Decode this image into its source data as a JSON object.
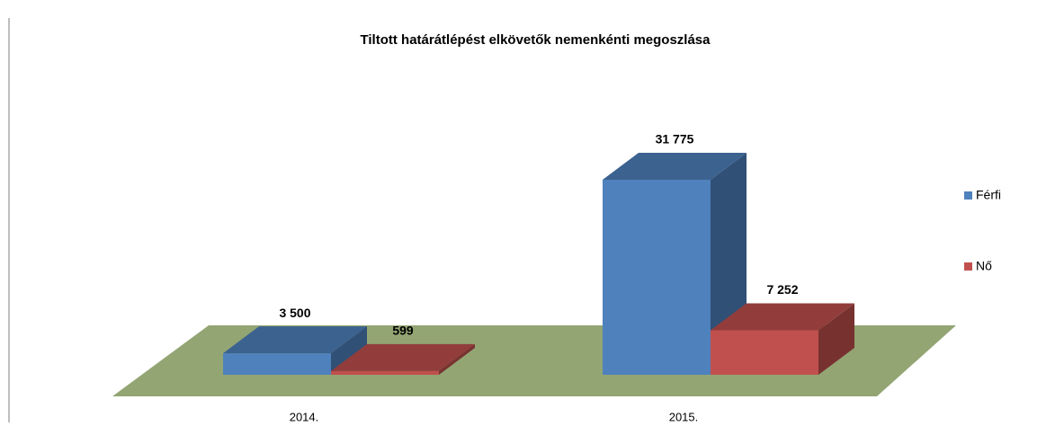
{
  "chart_data": {
    "type": "bar3d",
    "title": "Tiltott határátlépést elkövetők nemenkénti megoszlása",
    "categories": [
      "2014.",
      "2015."
    ],
    "series": [
      {
        "name": "Férfi",
        "color": "#4f81bd",
        "values": [
          3500,
          31775
        ],
        "value_labels": [
          "3 500",
          "31 775"
        ]
      },
      {
        "name": "Nő",
        "color": "#c0504d",
        "values": [
          599,
          7252
        ],
        "value_labels": [
          "599",
          "7 252"
        ]
      }
    ],
    "legend": "right"
  }
}
